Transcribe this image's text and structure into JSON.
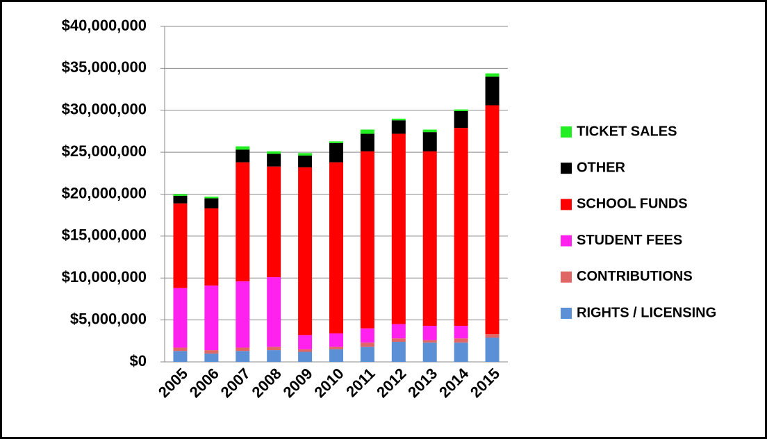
{
  "chart_data": {
    "type": "stacked_bar",
    "categories": [
      "2005",
      "2006",
      "2007",
      "2008",
      "2009",
      "2010",
      "2011",
      "2012",
      "2013",
      "2014",
      "2015"
    ],
    "series": [
      {
        "name": "RIGHTS / LICENSING",
        "color": "#5b8fd6",
        "values": [
          1300000,
          1000000,
          1300000,
          1400000,
          1200000,
          1500000,
          1800000,
          2400000,
          2300000,
          2300000,
          2900000
        ]
      },
      {
        "name": "CONTRIBUTIONS",
        "color": "#e06666",
        "values": [
          400000,
          400000,
          400000,
          400000,
          300000,
          300000,
          500000,
          400000,
          300000,
          500000,
          400000
        ]
      },
      {
        "name": "STUDENT FEES",
        "color": "#ff22ee",
        "values": [
          7100000,
          7700000,
          7900000,
          8300000,
          1700000,
          1600000,
          1700000,
          1700000,
          1700000,
          1500000,
          0
        ]
      },
      {
        "name": "SCHOOL FUNDS",
        "color": "#ff0000",
        "values": [
          10100000,
          9200000,
          14200000,
          13200000,
          20000000,
          20400000,
          21100000,
          22700000,
          20800000,
          23600000,
          27300000
        ]
      },
      {
        "name": "OTHER",
        "color": "#000000",
        "values": [
          900000,
          1200000,
          1500000,
          1500000,
          1400000,
          2300000,
          2100000,
          1600000,
          2300000,
          2000000,
          3400000
        ]
      },
      {
        "name": "TICKET SALES",
        "color": "#22ee22",
        "values": [
          200000,
          200000,
          400000,
          300000,
          300000,
          200000,
          500000,
          200000,
          300000,
          200000,
          400000
        ]
      }
    ],
    "ylim": [
      0,
      40000000
    ],
    "yticks": [
      {
        "value": 0,
        "label": "$0"
      },
      {
        "value": 5000000,
        "label": "$5,000,000"
      },
      {
        "value": 10000000,
        "label": "$10,000,000"
      },
      {
        "value": 15000000,
        "label": "$15,000,000"
      },
      {
        "value": 20000000,
        "label": "$20,000,000"
      },
      {
        "value": 25000000,
        "label": "$25,000,000"
      },
      {
        "value": 30000000,
        "label": "$30,000,000"
      },
      {
        "value": 35000000,
        "label": "$35,000,000"
      },
      {
        "value": 40000000,
        "label": "$40,000,000"
      }
    ],
    "grid": true,
    "legend": "right"
  }
}
